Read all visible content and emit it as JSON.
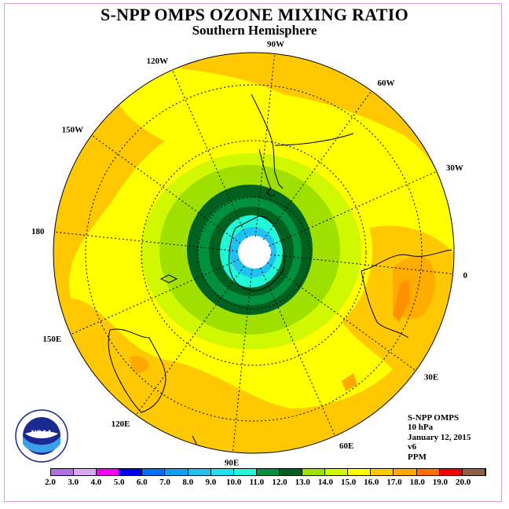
{
  "title": "S-NPP OMPS OZONE MIXING RATIO",
  "subtitle": "Southern Hemisphere",
  "longitude_labels": [
    {
      "text": "90W",
      "lon": -90
    },
    {
      "text": "60W",
      "lon": -60
    },
    {
      "text": "30W",
      "lon": -30
    },
    {
      "text": "0",
      "lon": 0
    },
    {
      "text": "30E",
      "lon": 30
    },
    {
      "text": "60E",
      "lon": 60
    },
    {
      "text": "90E",
      "lon": 90
    },
    {
      "text": "120E",
      "lon": 120
    },
    {
      "text": "150E",
      "lon": 150
    },
    {
      "text": "180",
      "lon": 180
    },
    {
      "text": "150W",
      "lon": -150
    },
    {
      "text": "120W",
      "lon": -120
    }
  ],
  "info": {
    "instrument": "S-NPP OMPS",
    "level": "10 hPa",
    "date": "January 12, 2015",
    "version": "v6",
    "units": "PPM"
  },
  "logo": {
    "text": "NOAA",
    "ring_text": "NATIONAL OCEANIC AND ATMOSPHERIC ADMINISTRATION"
  },
  "colorbar": {
    "ticks": [
      "2.0",
      "3.0",
      "4.0",
      "5.0",
      "6.0",
      "7.0",
      "8.0",
      "9.0",
      "10.0",
      "11.0",
      "12.0",
      "13.0",
      "14.0",
      "15.0",
      "16.0",
      "17.0",
      "18.0",
      "19.0",
      "20.0"
    ],
    "colors": [
      "#b070e0",
      "#d8a8f0",
      "#f000f0",
      "#0000f0",
      "#0070f0",
      "#10a0f0",
      "#20c0f0",
      "#20e0f0",
      "#20f8d8",
      "#009040",
      "#006020",
      "#a0e000",
      "#d0f800",
      "#ffff00",
      "#ffc800",
      "#ffa800",
      "#ff7000",
      "#f00000",
      "#906040"
    ]
  },
  "map_data": {
    "projection": "south polar stereographic",
    "variable": "ozone mixing ratio",
    "units": "PPM",
    "pressure_level": "10 hPa",
    "features": [
      "South America",
      "Africa",
      "Australia",
      "New Zealand",
      "Antarctica"
    ]
  }
}
